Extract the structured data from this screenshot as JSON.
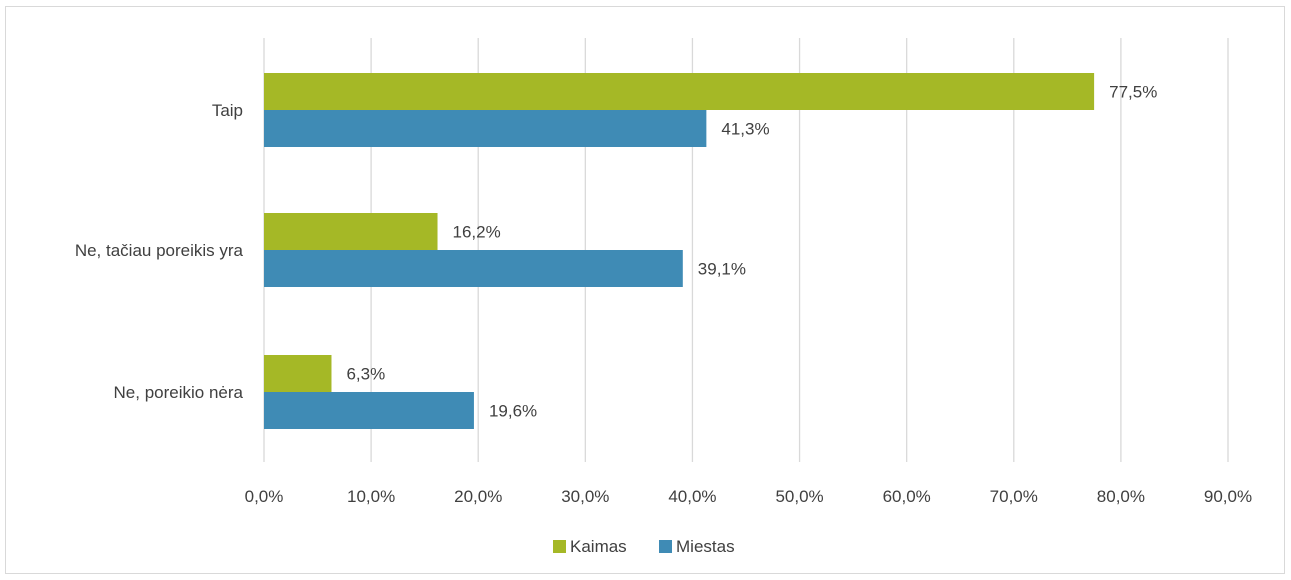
{
  "chart_data": {
    "type": "bar",
    "orientation": "horizontal",
    "categories": [
      "Taip",
      "Ne, tačiau poreikis yra",
      "Ne, poreikio nėra"
    ],
    "series": [
      {
        "name": "Kaimas",
        "color": "#a5b826",
        "values": [
          77.5,
          16.2,
          6.3
        ],
        "labels": [
          "77,5%",
          "16,2%",
          "6,3%"
        ]
      },
      {
        "name": "Miestas",
        "color": "#3f8bb5",
        "values": [
          41.3,
          39.1,
          19.6
        ],
        "labels": [
          "41,3%",
          "39,1%",
          "19,6%"
        ]
      }
    ],
    "xlim": [
      0,
      90
    ],
    "xticks": [
      0,
      10,
      20,
      30,
      40,
      50,
      60,
      70,
      80,
      90
    ],
    "xtick_labels": [
      "0,0%",
      "10,0%",
      "20,0%",
      "30,0%",
      "40,0%",
      "50,0%",
      "60,0%",
      "70,0%",
      "80,0%",
      "90,0%"
    ],
    "grid": "vertical",
    "legend_position": "bottom",
    "title": "",
    "xlabel": "",
    "ylabel": ""
  }
}
